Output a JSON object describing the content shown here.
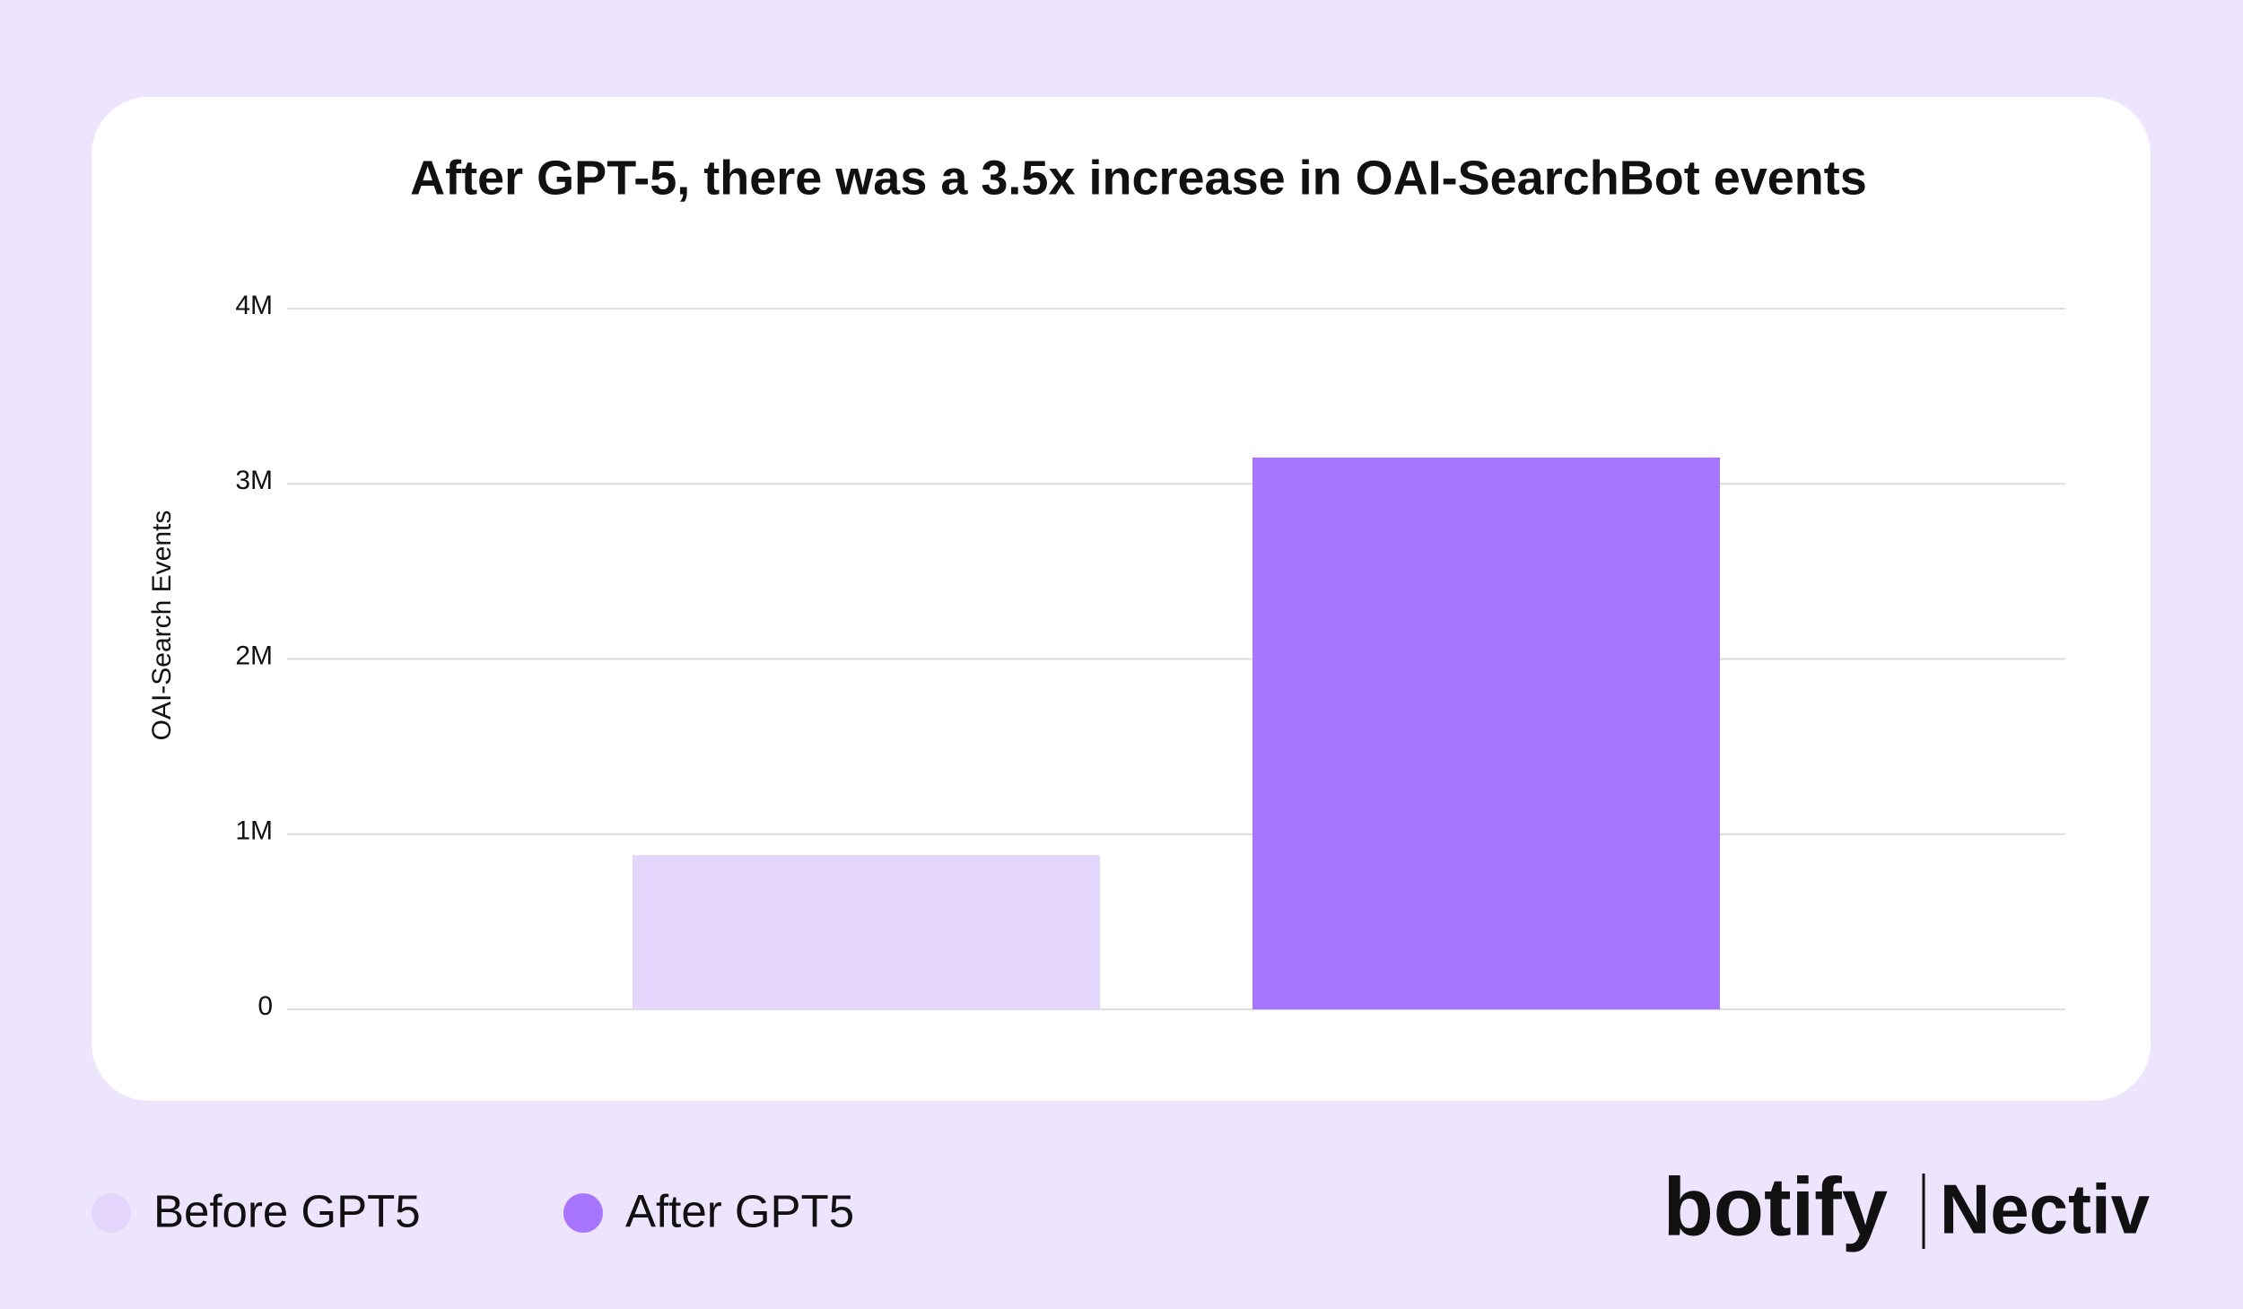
{
  "chart_data": {
    "type": "bar",
    "title": "After GPT-5, there was a 3.5x increase in OAI-SearchBot events",
    "y_label": "OAI-Search Events",
    "categories": [
      null
    ],
    "series": [
      {
        "name": "Before GPT5",
        "color": "#e4d5fd",
        "values": [
          880000
        ]
      },
      {
        "name": "After GPT5",
        "color": "#a875ff",
        "values": [
          3150000
        ]
      }
    ],
    "ylim": [
      0,
      4000000
    ],
    "yticks": [
      0,
      {
        "value": 1000000,
        "label": "1M"
      },
      {
        "value": 2000000,
        "label": "2M"
      },
      {
        "value": 3000000,
        "label": "3M"
      },
      {
        "value": 4000000,
        "label": "4M"
      }
    ],
    "grid": true,
    "legend": "bottom-left"
  },
  "logos": [
    "botify",
    "Nectiv"
  ]
}
